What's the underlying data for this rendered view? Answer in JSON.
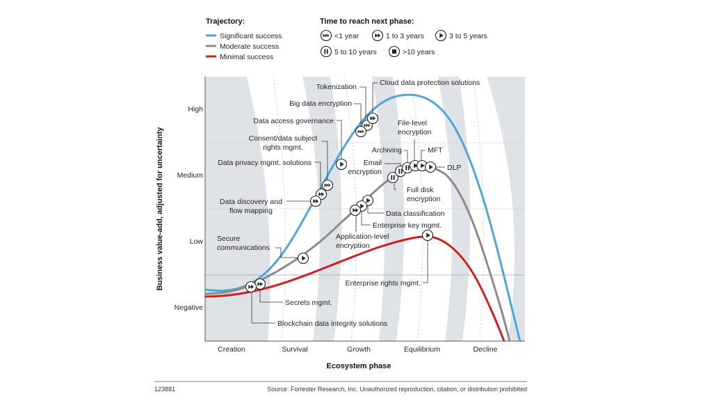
{
  "legend": {
    "trajectory_title": "Trajectory:",
    "trajectory": [
      {
        "label": "Significant success",
        "color": "#4ba8d5"
      },
      {
        "label": "Moderate success",
        "color": "#8a8a8a"
      },
      {
        "label": "Minimal success",
        "color": "#cc1f1f"
      }
    ],
    "time_title": "Time to reach next phase:",
    "time": [
      {
        "label": "<1 year",
        "icon": "triple-arrow"
      },
      {
        "label": "1 to 3 years",
        "icon": "double-arrow"
      },
      {
        "label": "3 to 5 years",
        "icon": "play"
      },
      {
        "label": "5 to 10 years",
        "icon": "pause"
      },
      {
        "label": ">10 years",
        "icon": "stop"
      }
    ]
  },
  "axes": {
    "ylabel": "Business value-add, adjusted for uncertainty",
    "xlabel": "Ecosystem phase",
    "y_ticks": [
      "High",
      "Medium",
      "Low",
      "Negative"
    ],
    "x_ticks": [
      "Creation",
      "Survival",
      "Growth",
      "Equilibrium",
      "Decline"
    ]
  },
  "technologies": [
    {
      "label": "Tokenization",
      "icon": "triple-arrow",
      "trajectory": "Significant success"
    },
    {
      "label": "Cloud data protection solutions",
      "icon": "double-arrow",
      "trajectory": "Significant success"
    },
    {
      "label": "Big data encryption",
      "icon": "triple-arrow",
      "trajectory": "Significant success"
    },
    {
      "label": "Data access governance",
      "icon": "play",
      "trajectory": "Significant success"
    },
    {
      "label": "Consent/data subject rights mgmt.",
      "icon": "triple-arrow",
      "trajectory": "Significant success"
    },
    {
      "label": "Data privacy mgmt. solutions",
      "icon": "double-arrow",
      "trajectory": "Significant success"
    },
    {
      "label": "Data discovery and flow mapping",
      "icon": "double-arrow",
      "trajectory": "Significant success"
    },
    {
      "label": "Secure communications",
      "icon": "play",
      "trajectory": "Moderate success"
    },
    {
      "label": "File-level encryption",
      "icon": "play",
      "trajectory": "Moderate success"
    },
    {
      "label": "Archiving",
      "icon": "pause",
      "trajectory": "Moderate success"
    },
    {
      "label": "MFT",
      "icon": "play",
      "trajectory": "Moderate success"
    },
    {
      "label": "Email encryption",
      "icon": "pause",
      "trajectory": "Moderate success"
    },
    {
      "label": "DLP",
      "icon": "play",
      "trajectory": "Moderate success"
    },
    {
      "label": "Full disk encryption",
      "icon": "pause",
      "trajectory": "Moderate success"
    },
    {
      "label": "Data classification",
      "icon": "play",
      "trajectory": "Moderate success"
    },
    {
      "label": "Enterprise key mgmt.",
      "icon": "play",
      "trajectory": "Moderate success"
    },
    {
      "label": "Application-level encryption",
      "icon": "double-arrow",
      "trajectory": "Moderate success"
    },
    {
      "label": "Enterprise rights mgmt.",
      "icon": "play",
      "trajectory": "Minimal success"
    },
    {
      "label": "Secrets mgmt.",
      "icon": "double-arrow",
      "trajectory": "Moderate success"
    },
    {
      "label": "Blockchain data integrity solutions",
      "icon": "double-arrow",
      "trajectory": "Moderate success"
    }
  ],
  "footer": {
    "id": "123881",
    "source": "Source: Forrester Research, Inc. Unauthorized reproduction, citation, or distribution prohibited"
  }
}
